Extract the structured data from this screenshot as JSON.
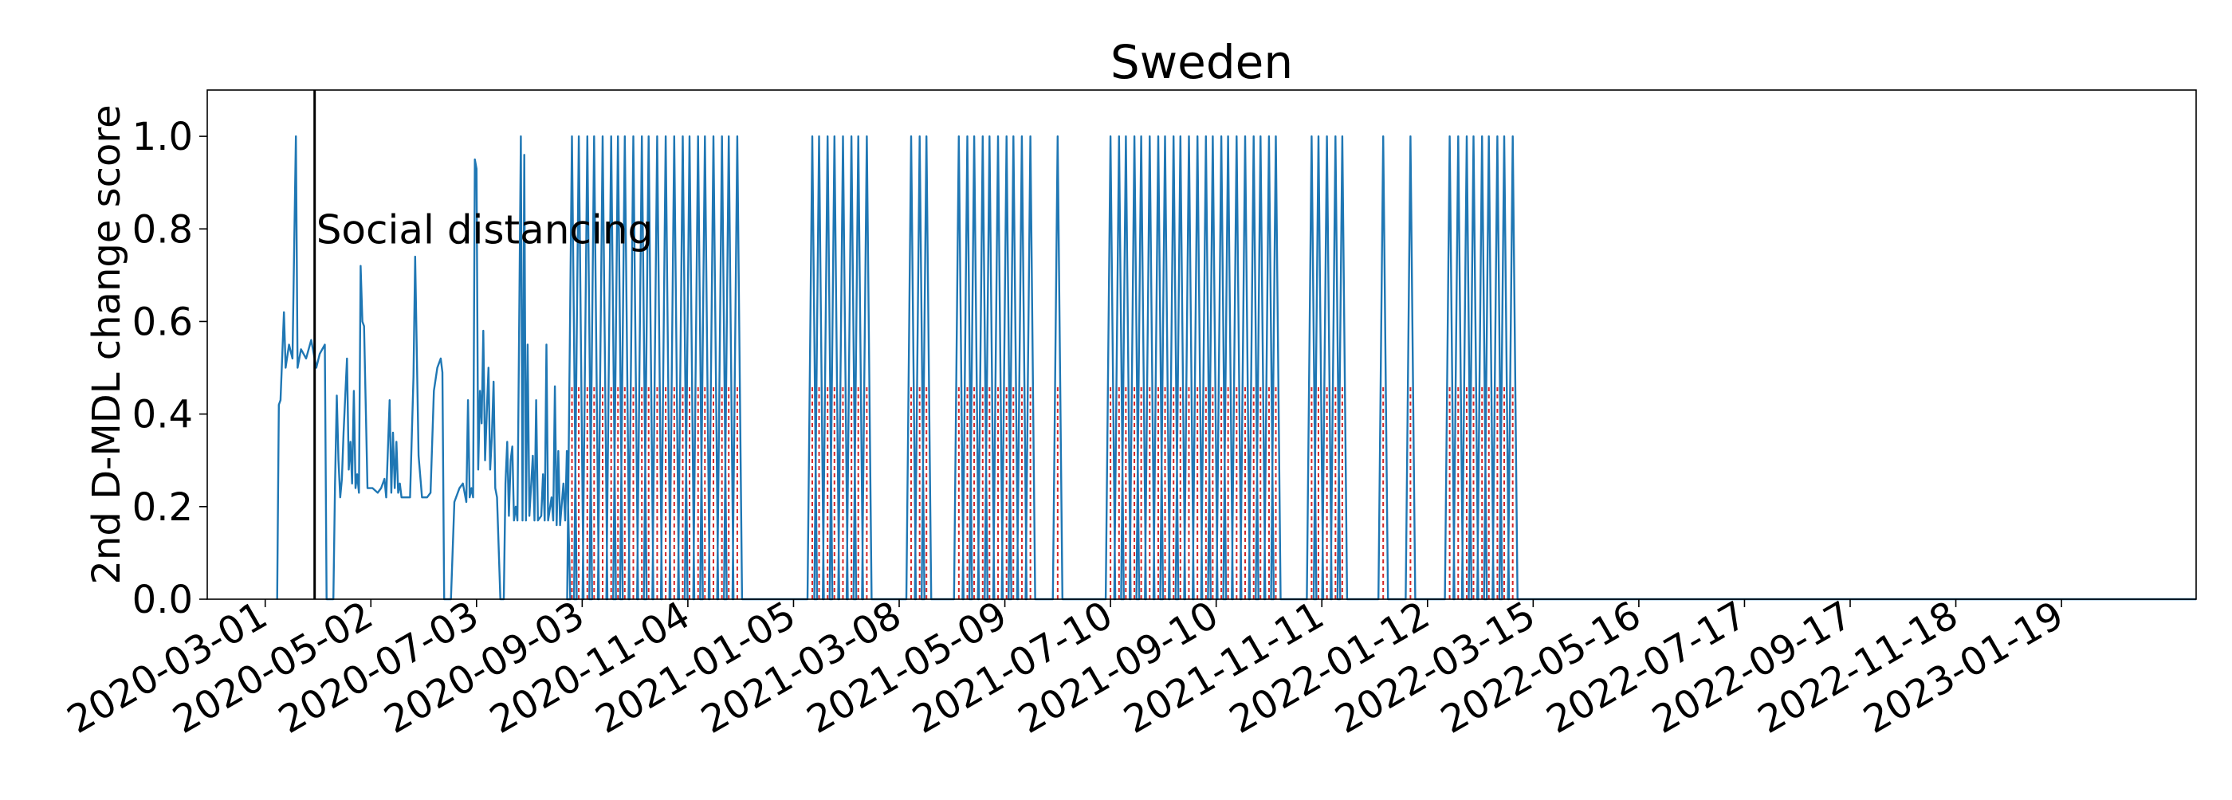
{
  "chart_data": {
    "type": "line",
    "title": "Sweden",
    "xlabel": "",
    "ylabel": "2nd D-MDL change score",
    "x_range": [
      "2020-01-27",
      "2023-04-08"
    ],
    "ylim": [
      0,
      1.1
    ],
    "x_ticks": [
      "2020-03-01",
      "2020-05-02",
      "2020-07-03",
      "2020-09-03",
      "2020-11-04",
      "2021-01-05",
      "2021-03-08",
      "2021-05-09",
      "2021-07-10",
      "2021-09-10",
      "2021-11-11",
      "2022-01-12",
      "2022-03-15",
      "2022-05-16",
      "2022-07-17",
      "2022-09-17",
      "2022-11-18",
      "2023-01-19"
    ],
    "y_ticks": [
      0.0,
      0.2,
      0.4,
      0.6,
      0.8,
      1.0
    ],
    "grid": false,
    "colors": {
      "line": "#1f77b4",
      "alarm": "#d62728",
      "event": "#000000"
    },
    "event": {
      "x": "2020-03-30",
      "label": "Social distancing"
    },
    "series": [
      {
        "points": [
          [
            "2020-03-08",
            0.0
          ],
          [
            "2020-03-09",
            0.42
          ],
          [
            "2020-03-10",
            0.43
          ],
          [
            "2020-03-12",
            0.62
          ],
          [
            "2020-03-13",
            0.5
          ],
          [
            "2020-03-15",
            0.55
          ],
          [
            "2020-03-17",
            0.52
          ],
          [
            "2020-03-19",
            1.0
          ],
          [
            "2020-03-20",
            0.5
          ],
          [
            "2020-03-22",
            0.54
          ],
          [
            "2020-03-25",
            0.52
          ],
          [
            "2020-03-28",
            0.56
          ],
          [
            "2020-03-31",
            0.5
          ],
          [
            "2020-04-02",
            0.53
          ],
          [
            "2020-04-05",
            0.55
          ],
          [
            "2020-04-06",
            0.0
          ],
          [
            "2020-04-10",
            0.0
          ],
          [
            "2020-04-11",
            0.25
          ],
          [
            "2020-04-12",
            0.44
          ],
          [
            "2020-04-13",
            0.3
          ],
          [
            "2020-04-14",
            0.22
          ],
          [
            "2020-04-15",
            0.26
          ],
          [
            "2020-04-16",
            0.36
          ],
          [
            "2020-04-18",
            0.52
          ],
          [
            "2020-04-19",
            0.28
          ],
          [
            "2020-04-20",
            0.34
          ],
          [
            "2020-04-21",
            0.25
          ],
          [
            "2020-04-22",
            0.45
          ],
          [
            "2020-04-23",
            0.24
          ],
          [
            "2020-04-24",
            0.27
          ],
          [
            "2020-04-25",
            0.23
          ],
          [
            "2020-04-26",
            0.72
          ],
          [
            "2020-04-27",
            0.6
          ],
          [
            "2020-04-28",
            0.59
          ],
          [
            "2020-04-30",
            0.24
          ],
          [
            "2020-05-03",
            0.24
          ],
          [
            "2020-05-06",
            0.23
          ],
          [
            "2020-05-08",
            0.24
          ],
          [
            "2020-05-10",
            0.26
          ],
          [
            "2020-05-11",
            0.22
          ],
          [
            "2020-05-13",
            0.43
          ],
          [
            "2020-05-14",
            0.23
          ],
          [
            "2020-05-15",
            0.36
          ],
          [
            "2020-05-16",
            0.24
          ],
          [
            "2020-05-17",
            0.34
          ],
          [
            "2020-05-18",
            0.23
          ],
          [
            "2020-05-19",
            0.25
          ],
          [
            "2020-05-20",
            0.22
          ],
          [
            "2020-05-21",
            0.22
          ],
          [
            "2020-05-23",
            0.22
          ],
          [
            "2020-05-25",
            0.22
          ],
          [
            "2020-05-27",
            0.48
          ],
          [
            "2020-05-28",
            0.74
          ],
          [
            "2020-05-30",
            0.31
          ],
          [
            "2020-06-01",
            0.22
          ],
          [
            "2020-06-04",
            0.22
          ],
          [
            "2020-06-06",
            0.23
          ],
          [
            "2020-06-08",
            0.45
          ],
          [
            "2020-06-10",
            0.5
          ],
          [
            "2020-06-12",
            0.52
          ],
          [
            "2020-06-13",
            0.49
          ],
          [
            "2020-06-14",
            0.0
          ],
          [
            "2020-06-18",
            0.0
          ],
          [
            "2020-06-20",
            0.21
          ],
          [
            "2020-06-23",
            0.24
          ],
          [
            "2020-06-25",
            0.25
          ],
          [
            "2020-06-27",
            0.21
          ],
          [
            "2020-06-28",
            0.43
          ],
          [
            "2020-06-29",
            0.22
          ],
          [
            "2020-06-30",
            0.24
          ],
          [
            "2020-07-01",
            0.22
          ],
          [
            "2020-07-02",
            0.95
          ],
          [
            "2020-07-03",
            0.93
          ],
          [
            "2020-07-04",
            0.28
          ],
          [
            "2020-07-05",
            0.45
          ],
          [
            "2020-07-06",
            0.38
          ],
          [
            "2020-07-07",
            0.58
          ],
          [
            "2020-07-08",
            0.3
          ],
          [
            "2020-07-09",
            0.4
          ],
          [
            "2020-07-10",
            0.5
          ],
          [
            "2020-07-11",
            0.28
          ],
          [
            "2020-07-12",
            0.35
          ],
          [
            "2020-07-13",
            0.47
          ],
          [
            "2020-07-14",
            0.24
          ],
          [
            "2020-07-15",
            0.22
          ],
          [
            "2020-07-17",
            0.0
          ],
          [
            "2020-07-19",
            0.0
          ],
          [
            "2020-07-20",
            0.25
          ],
          [
            "2020-07-21",
            0.34
          ],
          [
            "2020-07-22",
            0.18
          ],
          [
            "2020-07-23",
            0.3
          ],
          [
            "2020-07-24",
            0.33
          ],
          [
            "2020-07-25",
            0.17
          ],
          [
            "2020-07-26",
            0.2
          ],
          [
            "2020-07-27",
            0.17
          ],
          [
            "2020-07-29",
            1.0
          ],
          [
            "2020-07-30",
            0.17
          ],
          [
            "2020-07-31",
            0.96
          ],
          [
            "2020-08-01",
            0.17
          ],
          [
            "2020-08-02",
            0.55
          ],
          [
            "2020-08-03",
            0.18
          ],
          [
            "2020-08-05",
            0.31
          ],
          [
            "2020-08-06",
            0.17
          ],
          [
            "2020-08-07",
            0.43
          ],
          [
            "2020-08-08",
            0.17
          ],
          [
            "2020-08-10",
            0.18
          ],
          [
            "2020-08-11",
            0.27
          ],
          [
            "2020-08-12",
            0.17
          ],
          [
            "2020-08-13",
            0.55
          ],
          [
            "2020-08-14",
            0.17
          ],
          [
            "2020-08-16",
            0.22
          ],
          [
            "2020-08-17",
            0.17
          ],
          [
            "2020-08-18",
            0.46
          ],
          [
            "2020-08-19",
            0.16
          ],
          [
            "2020-08-20",
            0.32
          ],
          [
            "2020-08-21",
            0.16
          ],
          [
            "2020-08-23",
            0.25
          ],
          [
            "2020-08-24",
            0.17
          ],
          [
            "2020-08-25",
            0.32
          ],
          [
            "2020-08-26",
            0.16
          ],
          [
            "2020-08-27",
            0.0
          ]
        ],
        "spikes": [
          "2020-08-28",
          "2020-09-01",
          "2020-09-06",
          "2020-09-10",
          "2020-09-15",
          "2020-09-20",
          "2020-09-24",
          "2020-09-28",
          "2020-10-03",
          "2020-10-08",
          "2020-10-12",
          "2020-10-17",
          "2020-10-22",
          "2020-10-27",
          "2020-11-01",
          "2020-11-05",
          "2020-11-10",
          "2020-11-14",
          "2020-11-19",
          "2020-11-24",
          "2020-11-28",
          "2020-12-03",
          "2021-01-16",
          "2021-01-20",
          "2021-01-25",
          "2021-01-29",
          "2021-02-03",
          "2021-02-08",
          "2021-02-12",
          "2021-02-17",
          "2021-03-15",
          "2021-03-20",
          "2021-03-24",
          "2021-04-12",
          "2021-04-17",
          "2021-04-21",
          "2021-04-26",
          "2021-04-30",
          "2021-05-05",
          "2021-05-10",
          "2021-05-14",
          "2021-05-19",
          "2021-05-24",
          "2021-06-09",
          "2021-07-10",
          "2021-07-15",
          "2021-07-19",
          "2021-07-24",
          "2021-07-28",
          "2021-08-02",
          "2021-08-07",
          "2021-08-11",
          "2021-08-16",
          "2021-08-20",
          "2021-08-25",
          "2021-08-30",
          "2021-09-04",
          "2021-09-08",
          "2021-09-13",
          "2021-09-17",
          "2021-09-22",
          "2021-09-27",
          "2021-10-02",
          "2021-10-06",
          "2021-10-11",
          "2021-10-15",
          "2021-11-05",
          "2021-11-09",
          "2021-11-14",
          "2021-11-19",
          "2021-11-23",
          "2021-12-17",
          "2022-01-02",
          "2022-01-25",
          "2022-01-30",
          "2022-02-04",
          "2022-02-08",
          "2022-02-13",
          "2022-02-17",
          "2022-02-22",
          "2022-02-26",
          "2022-03-03"
        ],
        "flat_until": "2023-04-08"
      }
    ]
  }
}
